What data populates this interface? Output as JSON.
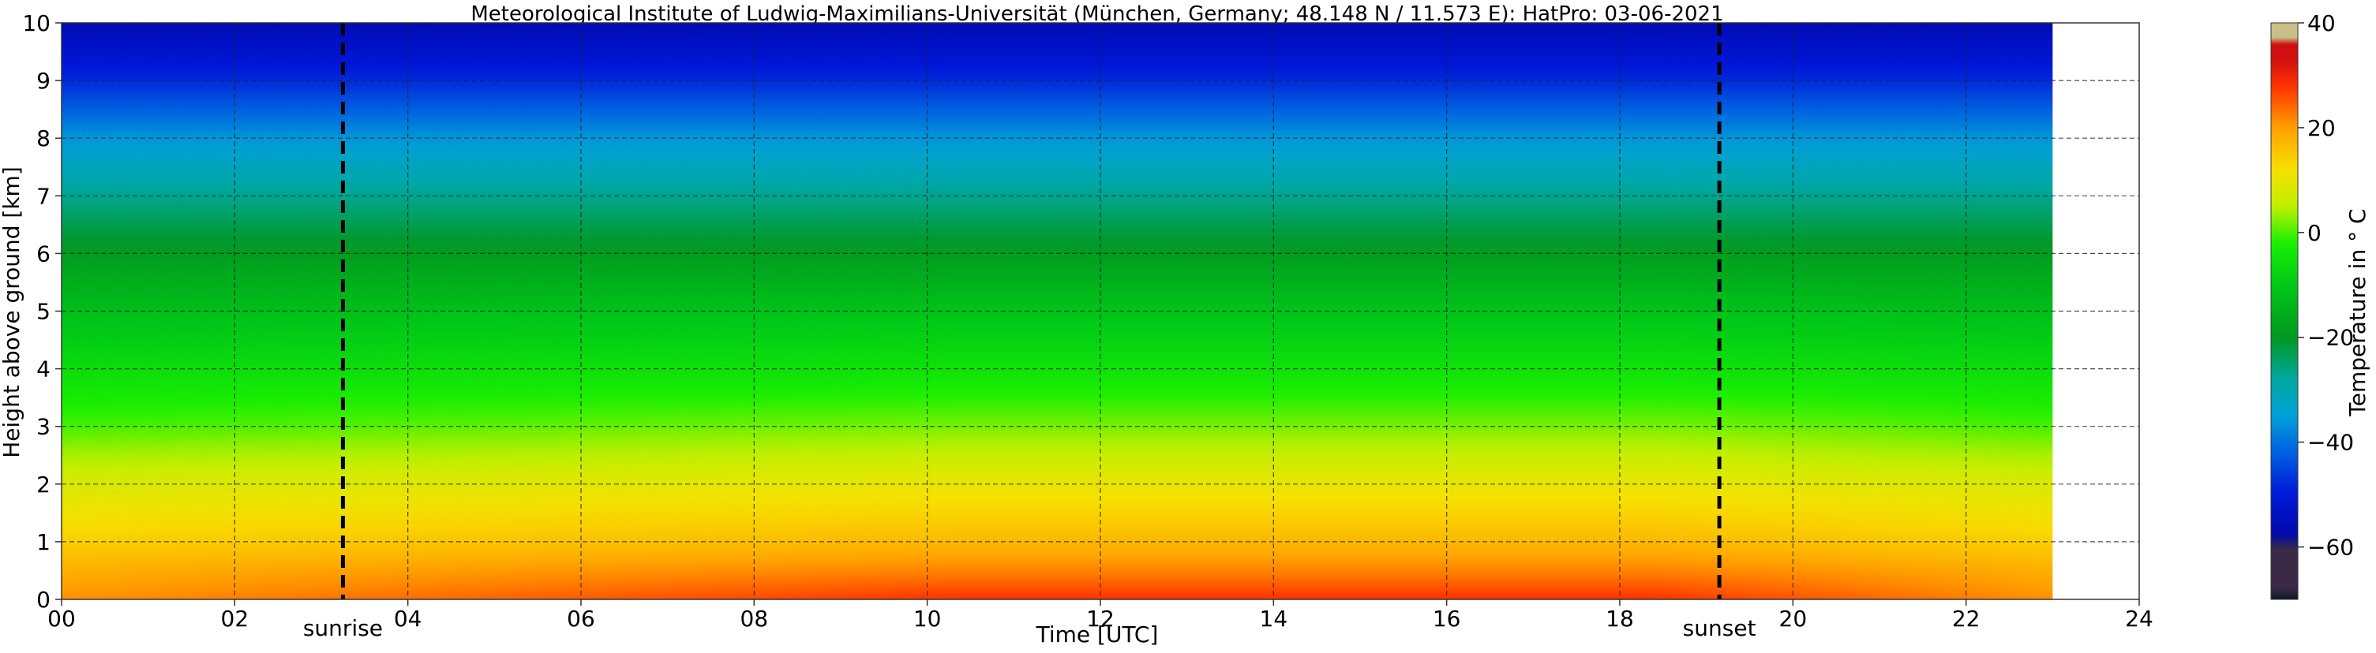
{
  "chart_data": {
    "type": "heatmap",
    "title": "Meteorological Institute of Ludwig-Maximilians-Universität (München, Germany; 48.148 N / 11.573 E):    HatPro: 03-06-2021",
    "xlabel": "Time [UTC]",
    "ylabel": "Height above ground [km]",
    "xlim": [
      0,
      24
    ],
    "ylim": [
      0,
      10
    ],
    "xticks": [
      "00",
      "02",
      "04",
      "06",
      "08",
      "10",
      "12",
      "14",
      "16",
      "18",
      "20",
      "22",
      "24"
    ],
    "yticks": [
      "0",
      "1",
      "2",
      "3",
      "4",
      "5",
      "6",
      "7",
      "8",
      "9",
      "10"
    ],
    "grid": true,
    "data_extent_hours": [
      0,
      23
    ],
    "annotations": [
      {
        "label": "sunrise",
        "x": 3.25
      },
      {
        "label": "sunset",
        "x": 19.15
      }
    ],
    "colorbar": {
      "label": "Temperature in ° C",
      "range": [
        -70,
        40
      ],
      "ticks": [
        "40",
        "20",
        "0",
        "−20",
        "−40",
        "−60"
      ],
      "colors": [
        {
          "t": -70,
          "color": "#0a1a22"
        },
        {
          "t": -68,
          "color": "#3a2a48"
        },
        {
          "t": -60,
          "color": "#3a2a48"
        },
        {
          "t": -58,
          "color": "#0008a8"
        },
        {
          "t": -50,
          "color": "#0018d8"
        },
        {
          "t": -42,
          "color": "#0060e0"
        },
        {
          "t": -35,
          "color": "#00a0d8"
        },
        {
          "t": -28,
          "color": "#00a8a0"
        },
        {
          "t": -20,
          "color": "#009820"
        },
        {
          "t": -10,
          "color": "#00c818"
        },
        {
          "t": -2,
          "color": "#18f000"
        },
        {
          "t": 5,
          "color": "#c0f000"
        },
        {
          "t": 12,
          "color": "#f8e000"
        },
        {
          "t": 20,
          "color": "#ffa000"
        },
        {
          "t": 28,
          "color": "#ff3000"
        },
        {
          "t": 33,
          "color": "#d01010"
        },
        {
          "t": 36,
          "color": "#d01010"
        },
        {
          "t": 37,
          "color": "#c8c088"
        },
        {
          "t": 40,
          "color": "#c8c088"
        }
      ]
    },
    "profile": [
      {
        "h": 0.0,
        "night": 21,
        "day": 28
      },
      {
        "h": 0.5,
        "night": 18,
        "day": 22
      },
      {
        "h": 1.0,
        "night": 14,
        "day": 17
      },
      {
        "h": 2.0,
        "night": 8,
        "day": 10
      },
      {
        "h": 3.0,
        "night": 0,
        "day": 2
      },
      {
        "h": 4.0,
        "night": -6,
        "day": -5
      },
      {
        "h": 5.0,
        "night": -12,
        "day": -11
      },
      {
        "h": 6.0,
        "night": -19,
        "day": -19
      },
      {
        "h": 7.0,
        "night": -27,
        "day": -27
      },
      {
        "h": 8.0,
        "night": -36,
        "day": -36
      },
      {
        "h": 9.0,
        "night": -48,
        "day": -48
      },
      {
        "h": 10.0,
        "night": -56,
        "day": -56
      }
    ]
  }
}
